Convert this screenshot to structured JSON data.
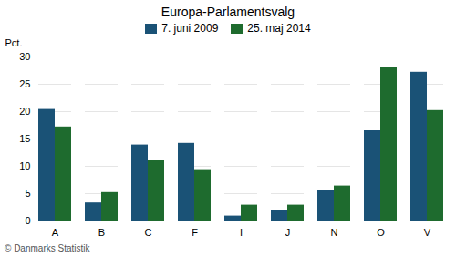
{
  "chart_data": {
    "type": "bar",
    "title": "Europa-Parlamentsvalg",
    "categories": [
      "A",
      "B",
      "C",
      "F",
      "I",
      "J",
      "N",
      "O",
      "V"
    ],
    "series": [
      {
        "name": "7. juni 2009",
        "color": "#1a5276",
        "values": [
          20.4,
          3.3,
          13.9,
          14.2,
          0.9,
          2.0,
          5.5,
          16.5,
          27.2
        ]
      },
      {
        "name": "25. maj 2014",
        "color": "#1e6b2e",
        "values": [
          17.2,
          5.2,
          11.0,
          9.4,
          2.9,
          2.9,
          6.4,
          28.0,
          20.2
        ]
      }
    ],
    "ylabel": "Pct.",
    "ylim": [
      0,
      30
    ],
    "yticks": [
      0,
      5,
      10,
      15,
      20,
      25,
      30
    ],
    "grid": true,
    "legend": "top",
    "caption": "© Danmarks Statistik"
  }
}
